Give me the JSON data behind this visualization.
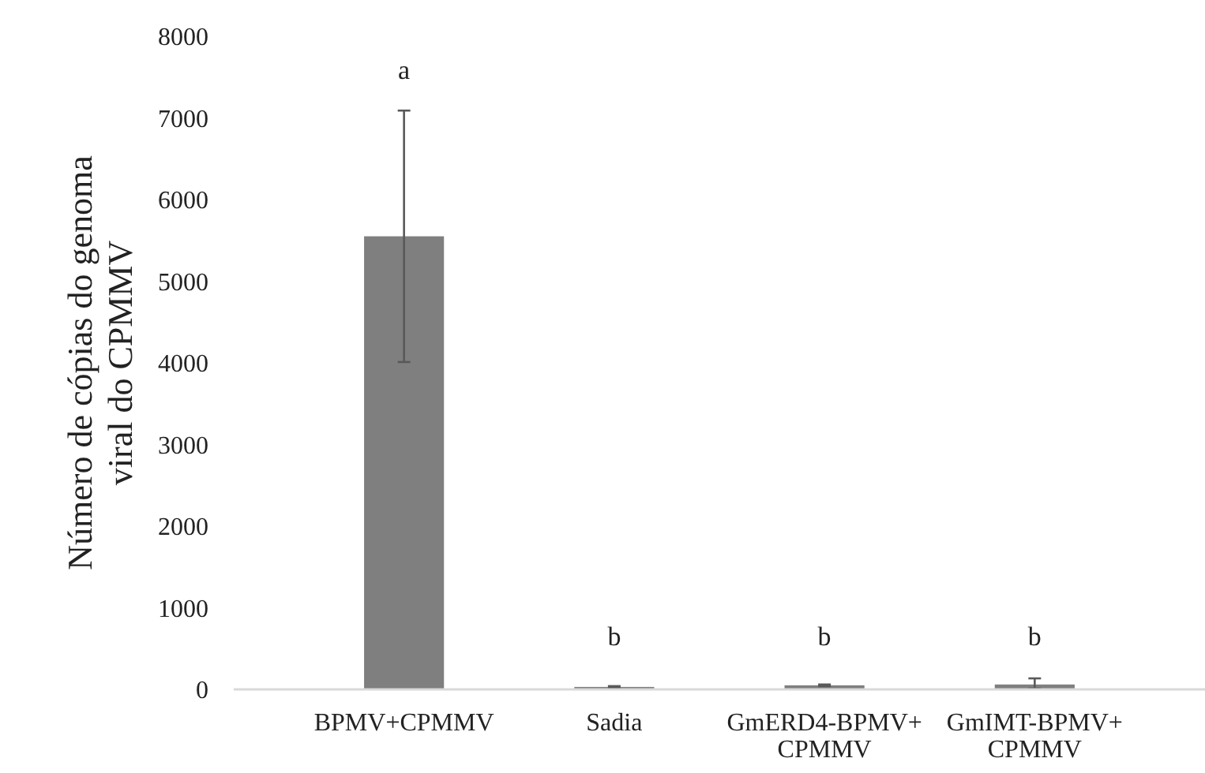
{
  "chart_data": {
    "type": "bar",
    "ylabel": "Número de cópias do genoma viral do CPMMV",
    "categories": [
      "BPMV+CPMMV",
      "Sadia",
      "GmERD4-BPMV+CPMMV",
      "GmIMT-BPMV+CPMMV"
    ],
    "values": [
      5550,
      30,
      50,
      60
    ],
    "errors": [
      1540,
      10,
      10,
      [
        50,
        75
      ]
    ],
    "color": "#7f7f7f",
    "ylim": [
      0,
      8000
    ],
    "yticks": [
      0,
      1000,
      2000,
      3000,
      4000,
      5000,
      6000,
      7000,
      8000
    ],
    "grid": false,
    "annotations": [
      "a",
      "b",
      "b",
      "b"
    ]
  }
}
